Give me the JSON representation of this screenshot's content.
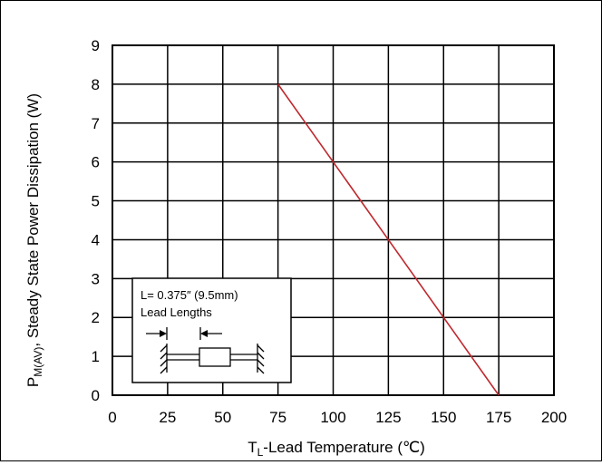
{
  "chart_data": {
    "type": "line",
    "xlabel_main": "T",
    "xlabel_sub": "L",
    "xlabel_rest": "-Lead Temperature (℃)",
    "ylabel_main": "P",
    "ylabel_sub": "M(AV)",
    "ylabel_rest": ", Steady State Power Dissipation (W)",
    "xlim": [
      0,
      200
    ],
    "ylim": [
      0,
      9
    ],
    "xticks": [
      "0",
      "25",
      "50",
      "75",
      "100",
      "125",
      "150",
      "175",
      "200"
    ],
    "yticks": [
      "0",
      "1",
      "2",
      "3",
      "4",
      "5",
      "6",
      "7",
      "8",
      "9"
    ],
    "grid": true,
    "line_color": "#c0282d",
    "series": [
      {
        "x": [
          75,
          175
        ],
        "y": [
          8,
          0
        ]
      }
    ],
    "inset": {
      "line1": "L= 0.375″ (9.5mm)",
      "line2": "Lead Lengths"
    }
  }
}
